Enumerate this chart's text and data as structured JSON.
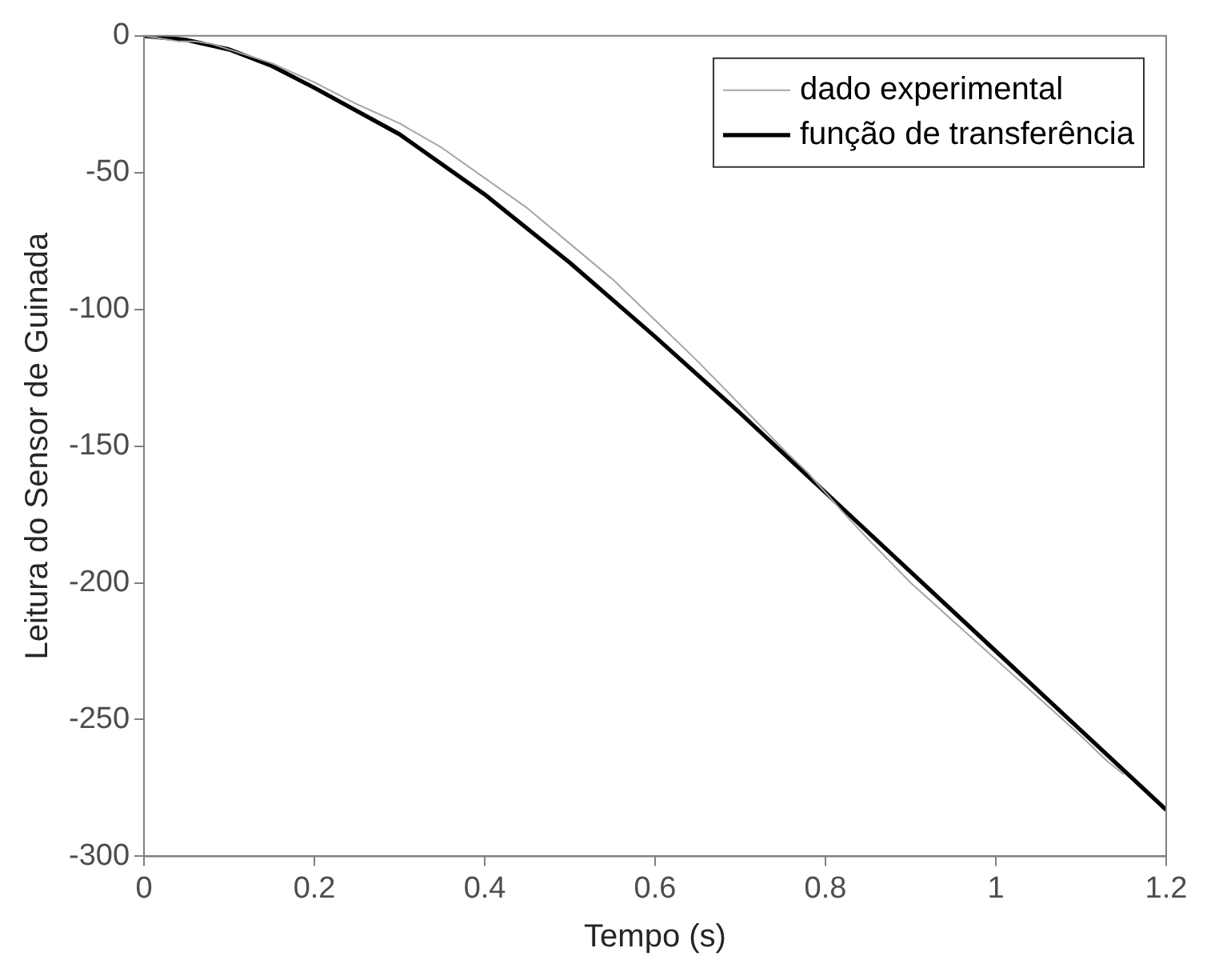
{
  "chart_data": {
    "type": "line",
    "xlabel": "Tempo (s)",
    "ylabel": "Leitura do Sensor de Guinada",
    "xlim": [
      0,
      1.2
    ],
    "ylim": [
      -300,
      0
    ],
    "xticks": [
      0,
      0.2,
      0.4,
      0.6,
      0.8,
      1,
      1.2
    ],
    "yticks": [
      -300,
      -250,
      -200,
      -150,
      -100,
      -50,
      0
    ],
    "grid": false,
    "legend": "top right",
    "marker": "none",
    "series": [
      {
        "name": "dado experimental",
        "color": "#a6a6a6",
        "x": [
          0,
          0.02,
          0.04,
          0.06,
          0.08,
          0.1,
          0.15,
          0.2,
          0.25,
          0.3,
          0.35,
          0.4,
          0.45,
          0.5,
          0.55,
          0.6,
          0.65,
          0.7,
          0.75,
          0.78,
          0.8,
          0.82,
          0.85,
          0.9,
          0.95,
          1,
          1.05,
          1.1,
          1.13,
          1.15
        ],
        "values": [
          0,
          -1,
          -2,
          -2,
          -3,
          -5,
          -10,
          -17,
          -25,
          -32,
          -41,
          -52,
          -63,
          -76,
          -89,
          -104,
          -119,
          -135,
          -151,
          -160,
          -167,
          -174,
          -184,
          -200,
          -214,
          -228,
          -242,
          -256,
          -265,
          -270
        ]
      },
      {
        "name": "função de transferência",
        "color": "#000000",
        "x": [
          0,
          0.05,
          0.1,
          0.15,
          0.2,
          0.3,
          0.4,
          0.5,
          0.6,
          0.7,
          0.8,
          0.9,
          1,
          1.1,
          1.2
        ],
        "values": [
          0,
          -1.5,
          -5,
          -11,
          -19,
          -36,
          -58,
          -83,
          -110,
          -138,
          -167,
          -196,
          -225,
          -254,
          -283
        ]
      }
    ]
  }
}
